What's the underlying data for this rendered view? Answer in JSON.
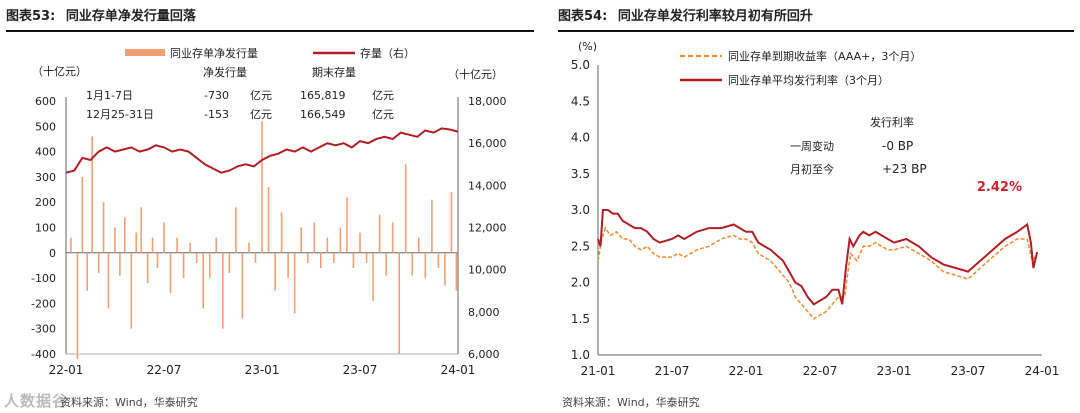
{
  "left": {
    "figure_no": "图表53:",
    "title": "同业存单净发行量回落",
    "source": "资料来源：Wind，华泰研究",
    "watermark": "人数据谷",
    "chart_data": {
      "type": "bar+line",
      "legend": [
        "同业存单净发行量",
        "存量（右）"
      ],
      "y_unit_left": "（十亿元）",
      "y_unit_right": "（十亿元）",
      "ylim_left": [
        -400,
        600
      ],
      "yticks_left": [
        "600",
        "500",
        "400",
        "300",
        "200",
        "100",
        "0",
        "-100",
        "-200",
        "-300",
        "-400"
      ],
      "ylim_right": [
        6000,
        18000
      ],
      "yticks_right": [
        "18,000",
        "16,000",
        "14,000",
        "12,000",
        "10,000",
        "8,000",
        "6,000"
      ],
      "x_ticks": [
        "22-01",
        "22-07",
        "23-01",
        "23-07",
        "24-01"
      ],
      "x_range_months": [
        0,
        24
      ],
      "table": {
        "headers": [
          "净发行量",
          "期末存量"
        ],
        "rows": [
          {
            "period": "1月1-7日",
            "net": "-730",
            "unit1": "亿元",
            "stock": "165,819",
            "unit2": "亿元"
          },
          {
            "period": "12月25-31日",
            "net": "-153",
            "unit1": "亿元",
            "stock": "166,549",
            "unit2": "亿元"
          }
        ]
      },
      "stock_series_months_values": [
        [
          0,
          14600
        ],
        [
          0.5,
          14700
        ],
        [
          1,
          15300
        ],
        [
          1.5,
          15200
        ],
        [
          2,
          15600
        ],
        [
          2.5,
          15800
        ],
        [
          3,
          15600
        ],
        [
          3.5,
          15700
        ],
        [
          4,
          15800
        ],
        [
          4.5,
          15600
        ],
        [
          5,
          15700
        ],
        [
          5.5,
          15900
        ],
        [
          6,
          15800
        ],
        [
          6.5,
          15600
        ],
        [
          7,
          15700
        ],
        [
          7.5,
          15600
        ],
        [
          8,
          15300
        ],
        [
          8.5,
          15000
        ],
        [
          9,
          14800
        ],
        [
          9.5,
          14600
        ],
        [
          10,
          14700
        ],
        [
          10.5,
          14900
        ],
        [
          11,
          15000
        ],
        [
          11.5,
          14900
        ],
        [
          12,
          15200
        ],
        [
          12.5,
          15400
        ],
        [
          13,
          15500
        ],
        [
          13.5,
          15700
        ],
        [
          14,
          15600
        ],
        [
          14.5,
          15800
        ],
        [
          15,
          15600
        ],
        [
          15.5,
          15800
        ],
        [
          16,
          16000
        ],
        [
          16.5,
          15900
        ],
        [
          17,
          16000
        ],
        [
          17.5,
          15800
        ],
        [
          18,
          16100
        ],
        [
          18.5,
          16000
        ],
        [
          19,
          16200
        ],
        [
          19.5,
          16300
        ],
        [
          20,
          16200
        ],
        [
          20.5,
          16500
        ],
        [
          21,
          16400
        ],
        [
          21.5,
          16300
        ],
        [
          22,
          16600
        ],
        [
          22.5,
          16500
        ],
        [
          23,
          16700
        ],
        [
          23.5,
          16650
        ],
        [
          24,
          16550
        ]
      ],
      "net_issuance_months_values": [
        [
          0.3,
          60
        ],
        [
          0.7,
          -420
        ],
        [
          1.0,
          300
        ],
        [
          1.3,
          -150
        ],
        [
          1.6,
          460
        ],
        [
          2.0,
          -80
        ],
        [
          2.3,
          200
        ],
        [
          2.6,
          -220
        ],
        [
          3.0,
          100
        ],
        [
          3.3,
          -90
        ],
        [
          3.6,
          140
        ],
        [
          4.0,
          -300
        ],
        [
          4.3,
          80
        ],
        [
          4.6,
          180
        ],
        [
          5.0,
          -120
        ],
        [
          5.3,
          60
        ],
        [
          5.6,
          -60
        ],
        [
          6.0,
          120
        ],
        [
          6.4,
          -160
        ],
        [
          6.8,
          60
        ],
        [
          7.2,
          -100
        ],
        [
          7.6,
          40
        ],
        [
          8.0,
          -40
        ],
        [
          8.4,
          -220
        ],
        [
          8.8,
          -100
        ],
        [
          9.2,
          60
        ],
        [
          9.6,
          -300
        ],
        [
          10.0,
          -80
        ],
        [
          10.4,
          180
        ],
        [
          10.8,
          -260
        ],
        [
          11.2,
          40
        ],
        [
          11.6,
          -40
        ],
        [
          12.0,
          520
        ],
        [
          12.4,
          260
        ],
        [
          12.8,
          -150
        ],
        [
          13.2,
          160
        ],
        [
          13.6,
          -100
        ],
        [
          14.0,
          -240
        ],
        [
          14.4,
          100
        ],
        [
          14.8,
          -40
        ],
        [
          15.2,
          120
        ],
        [
          15.6,
          -60
        ],
        [
          16.0,
          60
        ],
        [
          16.4,
          -40
        ],
        [
          16.8,
          100
        ],
        [
          17.2,
          220
        ],
        [
          17.6,
          -60
        ],
        [
          18.0,
          80
        ],
        [
          18.4,
          -40
        ],
        [
          18.8,
          -190
        ],
        [
          19.2,
          150
        ],
        [
          19.6,
          -90
        ],
        [
          20.0,
          120
        ],
        [
          20.4,
          -400
        ],
        [
          20.8,
          350
        ],
        [
          21.2,
          -90
        ],
        [
          21.6,
          60
        ],
        [
          22.0,
          -100
        ],
        [
          22.4,
          210
        ],
        [
          22.8,
          -60
        ],
        [
          23.2,
          -130
        ],
        [
          23.6,
          240
        ],
        [
          23.9,
          -150
        ]
      ],
      "colors": {
        "bar": "#f0a074",
        "line": "#b01f24"
      }
    }
  },
  "right": {
    "figure_no": "图表54:",
    "title": "同业存单发行利率较月初有所回升",
    "source": "资料来源：Wind，华泰研究",
    "chart_data": {
      "type": "line",
      "y_unit": "(%)",
      "ylim": [
        1.0,
        5.0
      ],
      "yticks": [
        "5.0",
        "4.5",
        "4.0",
        "3.5",
        "3.0",
        "2.5",
        "2.0",
        "1.5",
        "1.0"
      ],
      "x_ticks": [
        "21-01",
        "21-07",
        "22-01",
        "22-07",
        "23-01",
        "23-07",
        "24-01"
      ],
      "x_range_months": [
        0,
        36
      ],
      "series": [
        {
          "name": "同业存单到期收益率（AAA+，3个月）",
          "style": "dashed",
          "color": "#f08a30",
          "values": [
            [
              0,
              2.3
            ],
            [
              0.3,
              2.6
            ],
            [
              0.6,
              2.75
            ],
            [
              1,
              2.65
            ],
            [
              1.5,
              2.7
            ],
            [
              2,
              2.6
            ],
            [
              2.5,
              2.6
            ],
            [
              3,
              2.5
            ],
            [
              3.5,
              2.45
            ],
            [
              4,
              2.5
            ],
            [
              4.5,
              2.4
            ],
            [
              5,
              2.35
            ],
            [
              6,
              2.35
            ],
            [
              6.5,
              2.4
            ],
            [
              7,
              2.35
            ],
            [
              8,
              2.45
            ],
            [
              9,
              2.5
            ],
            [
              10,
              2.6
            ],
            [
              11,
              2.65
            ],
            [
              11.5,
              2.6
            ],
            [
              12,
              2.6
            ],
            [
              12.5,
              2.55
            ],
            [
              13,
              2.4
            ],
            [
              14,
              2.3
            ],
            [
              15,
              2.1
            ],
            [
              15.5,
              2.0
            ],
            [
              16,
              1.8
            ],
            [
              16.5,
              1.7
            ],
            [
              17,
              1.6
            ],
            [
              17.5,
              1.5
            ],
            [
              18,
              1.55
            ],
            [
              18.5,
              1.6
            ],
            [
              19,
              1.7
            ],
            [
              19.5,
              1.8
            ],
            [
              20,
              1.8
            ],
            [
              20.3,
              2.2
            ],
            [
              20.5,
              2.4
            ],
            [
              21,
              2.3
            ],
            [
              21.5,
              2.5
            ],
            [
              22,
              2.5
            ],
            [
              22.5,
              2.55
            ],
            [
              23,
              2.5
            ],
            [
              23.5,
              2.45
            ],
            [
              24,
              2.45
            ],
            [
              25,
              2.5
            ],
            [
              26,
              2.4
            ],
            [
              27,
              2.3
            ],
            [
              28,
              2.15
            ],
            [
              29,
              2.1
            ],
            [
              30,
              2.05
            ],
            [
              31,
              2.2
            ],
            [
              32,
              2.35
            ],
            [
              33,
              2.5
            ],
            [
              34,
              2.6
            ],
            [
              34.8,
              2.6
            ],
            [
              35.2,
              2.3
            ],
            [
              35.6,
              2.4
            ]
          ]
        },
        {
          "name": "同业存单平均发行利率（3个月）",
          "style": "solid",
          "color": "#b01f24",
          "values": [
            [
              0,
              2.6
            ],
            [
              0.2,
              2.5
            ],
            [
              0.4,
              3.0
            ],
            [
              0.8,
              3.0
            ],
            [
              1.2,
              2.95
            ],
            [
              1.6,
              2.95
            ],
            [
              2,
              2.85
            ],
            [
              2.5,
              2.8
            ],
            [
              3,
              2.75
            ],
            [
              3.5,
              2.75
            ],
            [
              4,
              2.7
            ],
            [
              4.5,
              2.6
            ],
            [
              5,
              2.55
            ],
            [
              6,
              2.6
            ],
            [
              6.5,
              2.65
            ],
            [
              7,
              2.6
            ],
            [
              8,
              2.7
            ],
            [
              9,
              2.75
            ],
            [
              10,
              2.75
            ],
            [
              11,
              2.8
            ],
            [
              11.5,
              2.75
            ],
            [
              12,
              2.7
            ],
            [
              12.5,
              2.7
            ],
            [
              13,
              2.55
            ],
            [
              14,
              2.45
            ],
            [
              15,
              2.3
            ],
            [
              15.5,
              2.15
            ],
            [
              16,
              2.0
            ],
            [
              16.5,
              1.95
            ],
            [
              17,
              1.8
            ],
            [
              17.5,
              1.7
            ],
            [
              18,
              1.75
            ],
            [
              18.5,
              1.8
            ],
            [
              19,
              1.9
            ],
            [
              19.5,
              1.9
            ],
            [
              19.8,
              1.7
            ],
            [
              20.1,
              2.2
            ],
            [
              20.4,
              2.6
            ],
            [
              20.7,
              2.5
            ],
            [
              21.2,
              2.65
            ],
            [
              21.5,
              2.7
            ],
            [
              22,
              2.65
            ],
            [
              22.5,
              2.7
            ],
            [
              23,
              2.65
            ],
            [
              23.5,
              2.6
            ],
            [
              24,
              2.55
            ],
            [
              25,
              2.6
            ],
            [
              26,
              2.5
            ],
            [
              27,
              2.35
            ],
            [
              28,
              2.25
            ],
            [
              29,
              2.2
            ],
            [
              30,
              2.15
            ],
            [
              31,
              2.3
            ],
            [
              32,
              2.45
            ],
            [
              33,
              2.6
            ],
            [
              34,
              2.7
            ],
            [
              34.8,
              2.8
            ],
            [
              35.1,
              2.55
            ],
            [
              35.3,
              2.2
            ],
            [
              35.6,
              2.42
            ]
          ]
        }
      ],
      "annotation": {
        "label": "2.42%",
        "color": "#d0202c"
      },
      "table": {
        "header": "发行利率",
        "rows": [
          {
            "label": "一周变动",
            "value": "-0 BP"
          },
          {
            "label": "月初至今",
            "value": "+23 BP"
          }
        ]
      }
    }
  }
}
